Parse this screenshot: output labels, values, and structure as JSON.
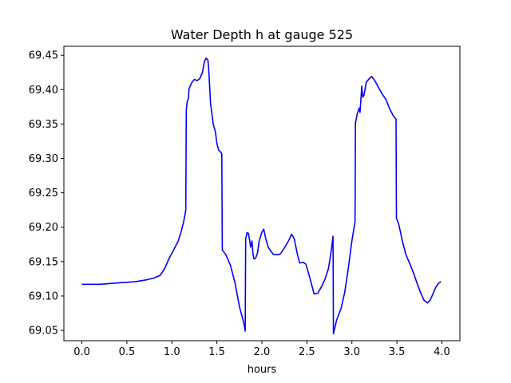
{
  "chart_data": {
    "type": "line",
    "title": "Water Depth h at gauge 525",
    "xlabel": "hours",
    "ylabel": "",
    "xlim": [
      -0.2,
      4.2
    ],
    "ylim": [
      69.035,
      69.463
    ],
    "x_ticks": [
      0.0,
      0.5,
      1.0,
      1.5,
      2.0,
      2.5,
      3.0,
      3.5,
      4.0
    ],
    "x_tick_labels": [
      "0.0",
      "0.5",
      "1.0",
      "1.5",
      "2.0",
      "2.5",
      "3.0",
      "3.5",
      "4.0"
    ],
    "y_ticks": [
      69.05,
      69.1,
      69.15,
      69.2,
      69.25,
      69.3,
      69.35,
      69.4,
      69.45
    ],
    "y_tick_labels": [
      "69.05",
      "69.10",
      "69.15",
      "69.20",
      "69.25",
      "69.30",
      "69.35",
      "69.40",
      "69.45"
    ],
    "grid": false,
    "series": [
      {
        "color": "#0000ff",
        "points": [
          [
            0.0,
            69.117
          ],
          [
            0.2,
            69.117
          ],
          [
            0.4,
            69.119
          ],
          [
            0.6,
            69.121
          ],
          [
            0.7,
            69.123
          ],
          [
            0.8,
            69.126
          ],
          [
            0.87,
            69.13
          ],
          [
            0.92,
            69.14
          ],
          [
            0.97,
            69.155
          ],
          [
            1.02,
            69.167
          ],
          [
            1.07,
            69.18
          ],
          [
            1.1,
            69.192
          ],
          [
            1.13,
            69.207
          ],
          [
            1.155,
            69.225
          ],
          [
            1.16,
            69.37
          ],
          [
            1.17,
            69.382
          ],
          [
            1.185,
            69.388
          ],
          [
            1.19,
            69.401
          ],
          [
            1.22,
            69.41
          ],
          [
            1.25,
            69.415
          ],
          [
            1.28,
            69.413
          ],
          [
            1.31,
            69.416
          ],
          [
            1.34,
            69.425
          ],
          [
            1.36,
            69.44
          ],
          [
            1.38,
            69.446
          ],
          [
            1.4,
            69.443
          ],
          [
            1.41,
            69.428
          ],
          [
            1.43,
            69.38
          ],
          [
            1.46,
            69.35
          ],
          [
            1.485,
            69.338
          ],
          [
            1.5,
            69.322
          ],
          [
            1.52,
            69.312
          ],
          [
            1.55,
            69.308
          ],
          [
            1.555,
            69.306
          ],
          [
            1.56,
            69.167
          ],
          [
            1.6,
            69.16
          ],
          [
            1.65,
            69.145
          ],
          [
            1.7,
            69.12
          ],
          [
            1.75,
            69.085
          ],
          [
            1.8,
            69.06
          ],
          [
            1.815,
            69.049
          ],
          [
            1.82,
            69.183
          ],
          [
            1.835,
            69.192
          ],
          [
            1.85,
            69.191
          ],
          [
            1.865,
            69.18
          ],
          [
            1.875,
            69.171
          ],
          [
            1.89,
            69.18
          ],
          [
            1.9,
            69.163
          ],
          [
            1.91,
            69.154
          ],
          [
            1.93,
            69.155
          ],
          [
            1.95,
            69.162
          ],
          [
            1.97,
            69.18
          ],
          [
            2.0,
            69.193
          ],
          [
            2.02,
            69.197
          ],
          [
            2.04,
            69.185
          ],
          [
            2.07,
            69.171
          ],
          [
            2.1,
            69.165
          ],
          [
            2.13,
            69.16
          ],
          [
            2.16,
            69.16
          ],
          [
            2.19,
            69.16
          ],
          [
            2.21,
            69.162
          ],
          [
            2.25,
            69.17
          ],
          [
            2.3,
            69.181
          ],
          [
            2.33,
            69.19
          ],
          [
            2.36,
            69.183
          ],
          [
            2.39,
            69.163
          ],
          [
            2.42,
            69.148
          ],
          [
            2.46,
            69.149
          ],
          [
            2.49,
            69.146
          ],
          [
            2.53,
            69.128
          ],
          [
            2.56,
            69.113
          ],
          [
            2.58,
            69.103
          ],
          [
            2.62,
            69.104
          ],
          [
            2.66,
            69.113
          ],
          [
            2.7,
            69.124
          ],
          [
            2.74,
            69.14
          ],
          [
            2.77,
            69.165
          ],
          [
            2.79,
            69.187
          ],
          [
            2.795,
            69.045
          ],
          [
            2.83,
            69.065
          ],
          [
            2.88,
            69.082
          ],
          [
            2.92,
            69.105
          ],
          [
            2.96,
            69.14
          ],
          [
            3.0,
            69.18
          ],
          [
            3.035,
            69.208
          ],
          [
            3.04,
            69.352
          ],
          [
            3.06,
            69.365
          ],
          [
            3.08,
            69.373
          ],
          [
            3.09,
            69.367
          ],
          [
            3.1,
            69.386
          ],
          [
            3.11,
            69.405
          ],
          [
            3.12,
            69.389
          ],
          [
            3.135,
            69.392
          ],
          [
            3.16,
            69.411
          ],
          [
            3.2,
            69.417
          ],
          [
            3.22,
            69.419
          ],
          [
            3.26,
            69.412
          ],
          [
            3.3,
            69.402
          ],
          [
            3.34,
            69.393
          ],
          [
            3.38,
            69.385
          ],
          [
            3.42,
            69.372
          ],
          [
            3.46,
            69.362
          ],
          [
            3.49,
            69.357
          ],
          [
            3.495,
            69.213
          ],
          [
            3.52,
            69.205
          ],
          [
            3.56,
            69.18
          ],
          [
            3.6,
            69.16
          ],
          [
            3.64,
            69.148
          ],
          [
            3.68,
            69.135
          ],
          [
            3.72,
            69.12
          ],
          [
            3.76,
            69.106
          ],
          [
            3.8,
            69.094
          ],
          [
            3.84,
            69.09
          ],
          [
            3.87,
            69.094
          ],
          [
            3.9,
            69.103
          ],
          [
            3.93,
            69.112
          ],
          [
            3.96,
            69.118
          ],
          [
            3.99,
            69.121
          ]
        ]
      }
    ]
  }
}
